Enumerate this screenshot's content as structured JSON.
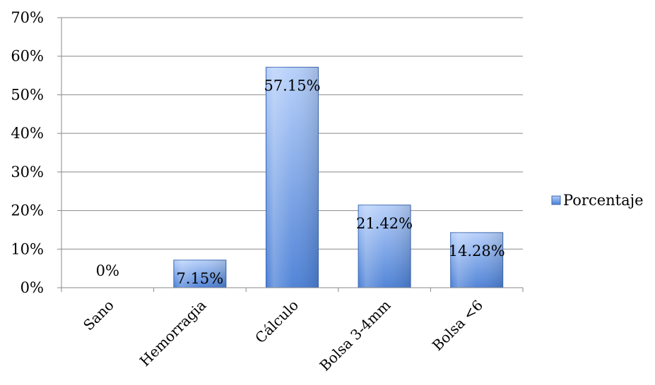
{
  "chart_data": {
    "type": "bar",
    "title": "",
    "xlabel": "",
    "ylabel": "",
    "categories": [
      "Sano",
      "Hemorragia",
      "Cálculo",
      "Bolsa 3-4mm",
      "Bolsa <6"
    ],
    "series": [
      {
        "name": "Porcentaje",
        "values": [
          0,
          7.15,
          57.15,
          21.42,
          14.28
        ]
      }
    ],
    "data_labels": [
      "0%",
      "7.15%",
      "57.15%",
      "21.42%",
      "14.28%"
    ],
    "y_ticks": [
      "0%",
      "10%",
      "20%",
      "30%",
      "40%",
      "50%",
      "60%",
      "70%"
    ],
    "ylim": [
      0,
      70
    ],
    "grid": true,
    "legend_position": "right",
    "colors": {
      "bar_top": "#b5cffa",
      "bar_bottom": "#4a7fd6",
      "bar_edge": "#3a66b0",
      "grid": "#888888"
    }
  }
}
